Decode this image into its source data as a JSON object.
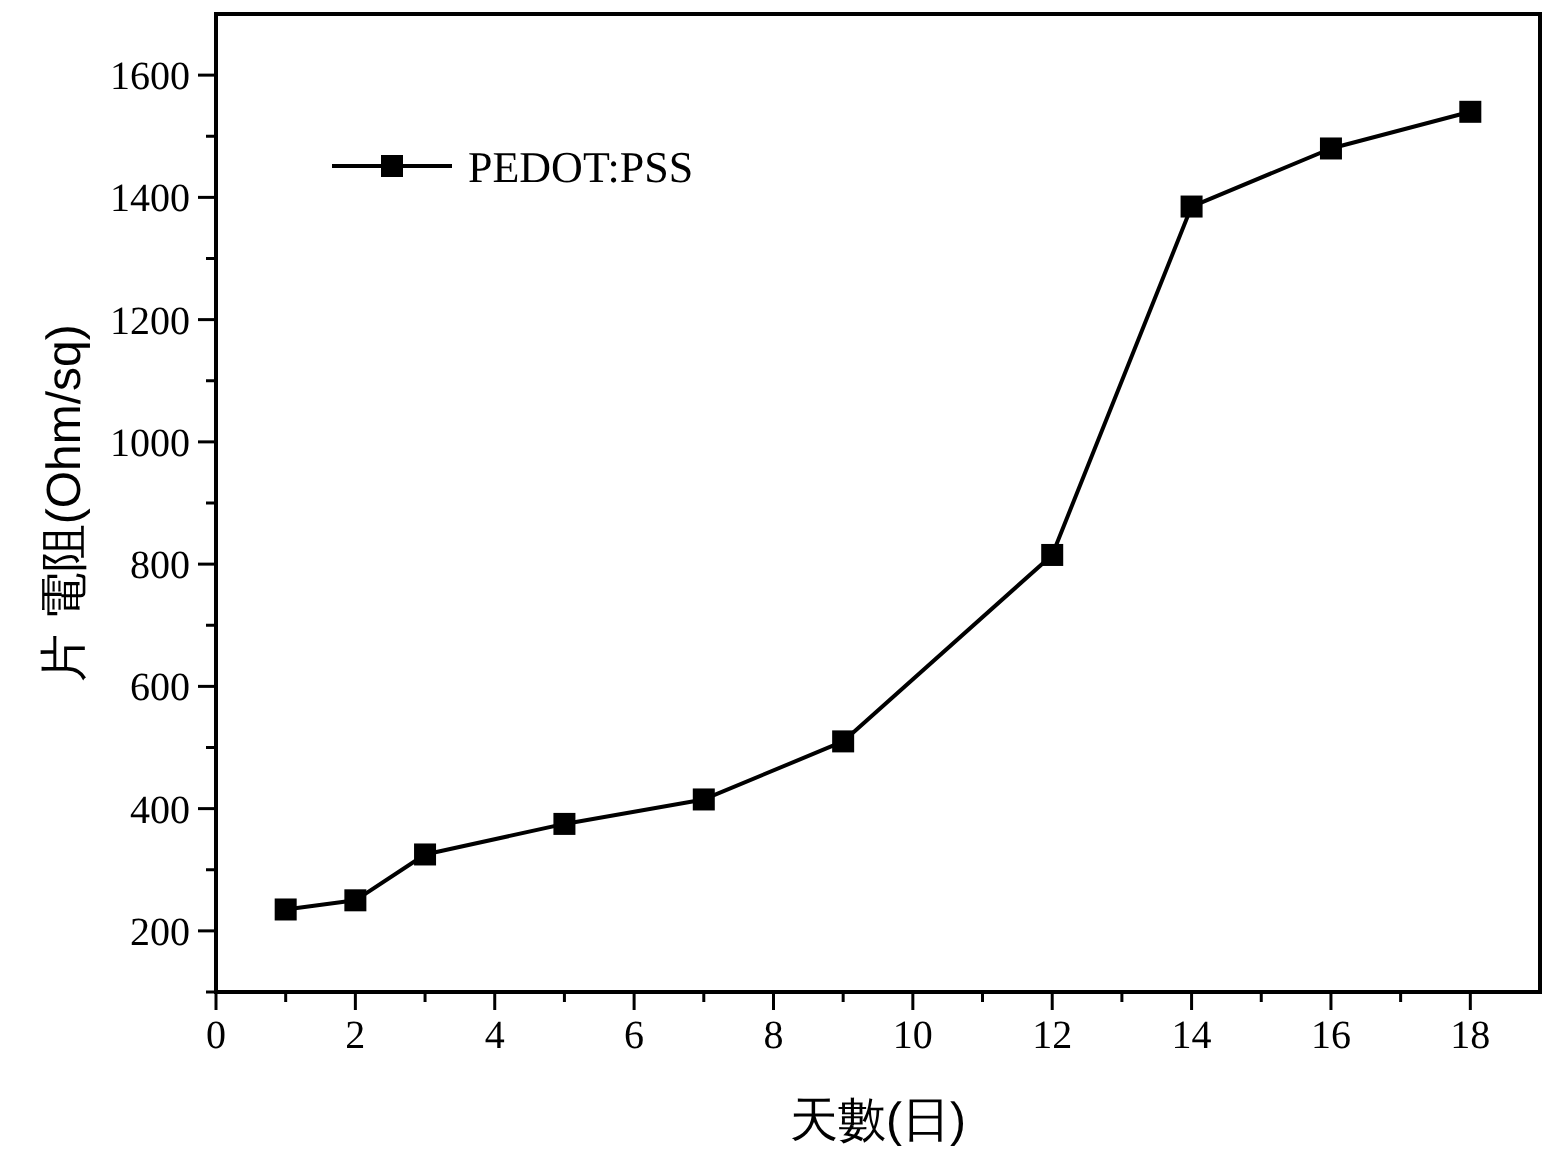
{
  "chart_data": {
    "type": "line",
    "xlabel": "天數(日)",
    "ylabel": "片 電阻(Ohm/sq)",
    "x": [
      1,
      2,
      3,
      5,
      7,
      9,
      12,
      14,
      16,
      18
    ],
    "series": [
      {
        "name": "PEDOT:PSS",
        "color": "#000000",
        "values": [
          235,
          250,
          325,
          375,
          415,
          510,
          815,
          1385,
          1480,
          1540
        ]
      }
    ],
    "xlim": [
      0,
      19
    ],
    "ylim": [
      100,
      1700
    ],
    "xticks": [
      0,
      {
        "value": 1,
        "label": null
      },
      2,
      {
        "value": 3,
        "label": null
      },
      4,
      {
        "value": 5,
        "label": null
      },
      6,
      {
        "value": 7,
        "label": null
      },
      8,
      {
        "value": 9,
        "label": null
      },
      10,
      {
        "value": 11,
        "label": null
      },
      12,
      {
        "value": 13,
        "label": null
      },
      14,
      {
        "value": 15,
        "label": null
      },
      16,
      {
        "value": 17,
        "label": null
      },
      18
    ],
    "yticks": [
      {
        "value": 100,
        "label": null
      },
      200,
      {
        "value": 300,
        "label": null
      },
      400,
      {
        "value": 500,
        "label": null
      },
      600,
      {
        "value": 700,
        "label": null
      },
      800,
      {
        "value": 900,
        "label": null
      },
      1000,
      {
        "value": 1100,
        "label": null
      },
      1200,
      {
        "value": 1300,
        "label": null
      },
      1400,
      {
        "value": 1500,
        "label": null
      },
      1600
    ],
    "marker": "square",
    "line_style": "solid",
    "legend": "top left",
    "grid": false
  }
}
